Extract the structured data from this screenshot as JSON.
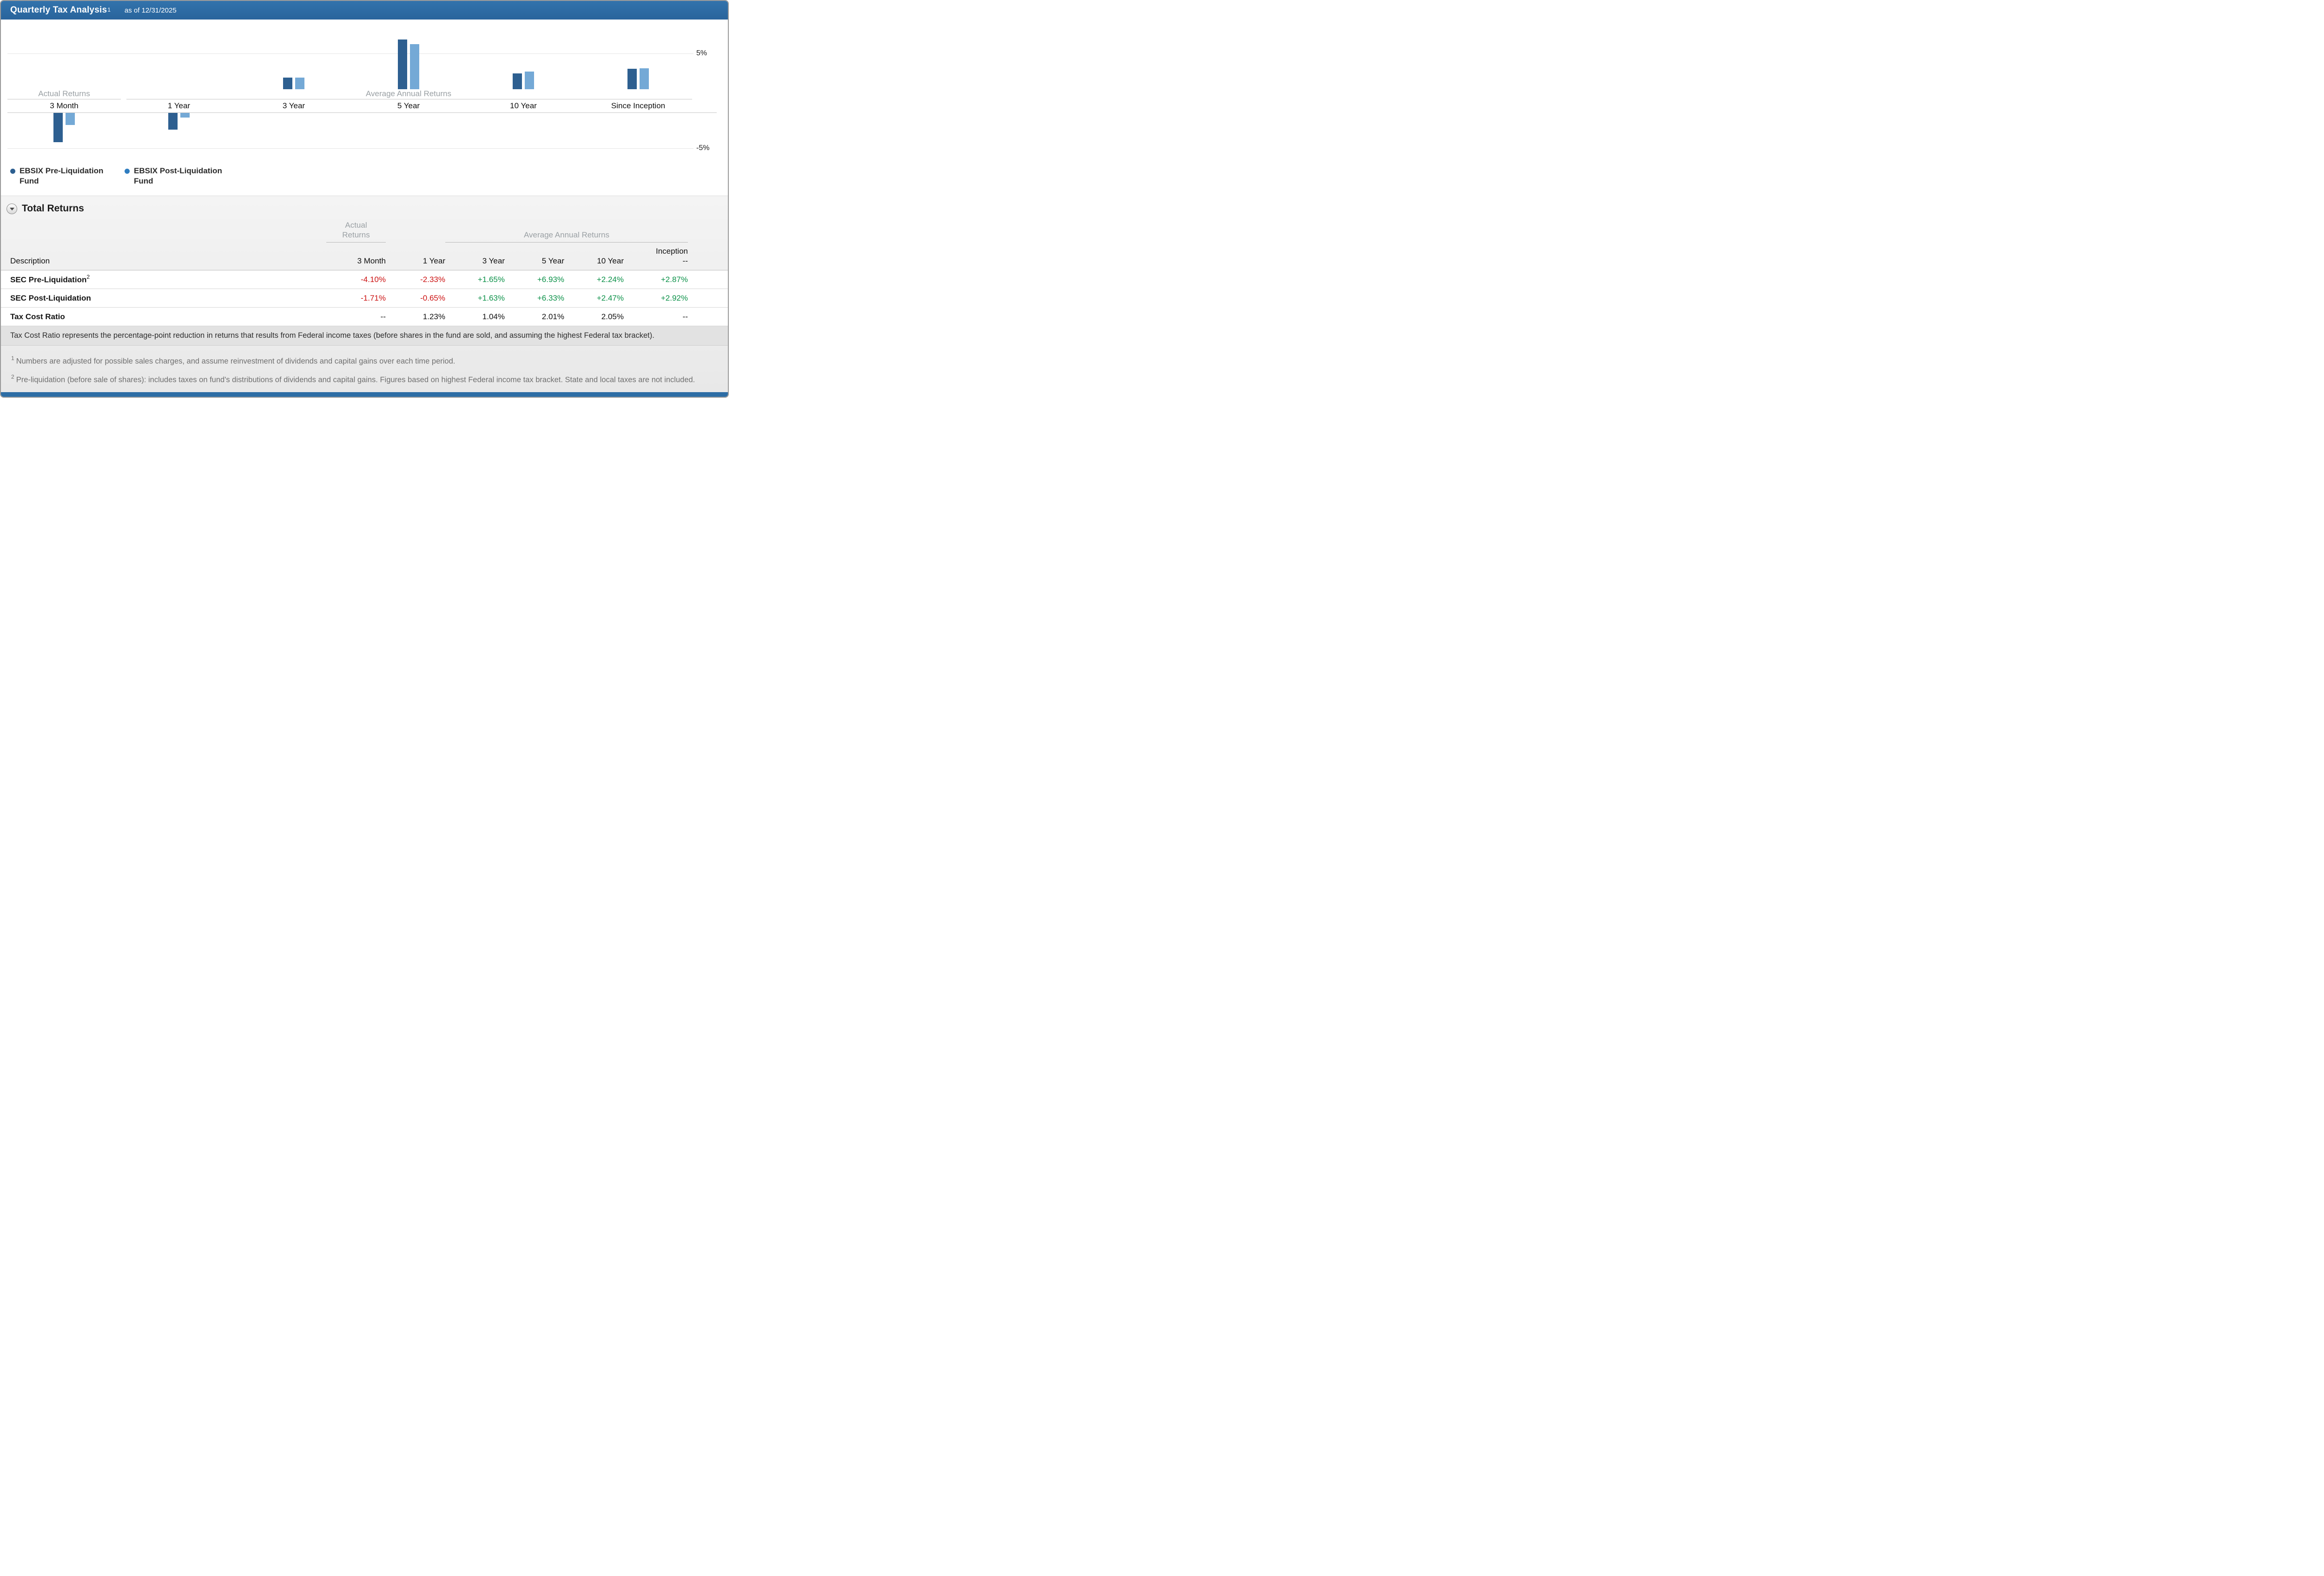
{
  "header": {
    "title": "Quarterly Tax Analysis",
    "title_sup": "1",
    "as_of": "as of 12/31/2025"
  },
  "chart_data": {
    "type": "bar",
    "title": "Quarterly Tax Analysis as of 12/31/2025",
    "categories": [
      "3 Month",
      "1 Year",
      "3 Year",
      "5 Year",
      "10 Year",
      "Since Inception"
    ],
    "groups": [
      {
        "label": "Actual Returns",
        "category_span": [
          0,
          0
        ]
      },
      {
        "label": "Average Annual Returns",
        "category_span": [
          1,
          5
        ]
      }
    ],
    "series": [
      {
        "name": "EBSIX Pre-Liquidation Fund",
        "color": "#2d5f90",
        "values": [
          -4.1,
          -2.33,
          1.65,
          6.93,
          2.24,
          2.87
        ]
      },
      {
        "name": "EBSIX Post-Liquidation Fund",
        "color": "#74a9d6",
        "values": [
          -1.71,
          -0.65,
          1.63,
          6.33,
          2.47,
          2.92
        ]
      }
    ],
    "unit": "%",
    "ylim": [
      -5.5,
      7.5
    ],
    "y_ticks": [
      {
        "label": "5%",
        "value": 5
      },
      {
        "label": "-5%",
        "value": -5
      }
    ],
    "grid": "faint horizontal at +/-5%",
    "legend_position": "bottom-left"
  },
  "legend": {
    "items": [
      {
        "label": "EBSIX Pre-Liquidation Fund",
        "color": "#2d5f90"
      },
      {
        "label": "EBSIX Post-Liquidation Fund",
        "color": "#2f7dc0"
      }
    ]
  },
  "total_returns": {
    "section_title": "Total Returns",
    "group_headers": {
      "actual": "Actual Returns",
      "average": "Average Annual Returns"
    },
    "columns": {
      "description": "Description",
      "c1": "3 Month",
      "c2": "1 Year",
      "c3": "3 Year",
      "c4": "5 Year",
      "c5": "10 Year",
      "c6": "Inception",
      "c6_sub": "--"
    },
    "rows": [
      {
        "label": "SEC Pre-Liquidation",
        "sup": "2",
        "values": [
          "-4.10%",
          "-2.33%",
          "+1.65%",
          "+6.93%",
          "+2.24%",
          "+2.87%"
        ]
      },
      {
        "label": "SEC Post-Liquidation",
        "sup": "",
        "values": [
          "-1.71%",
          "-0.65%",
          "+1.63%",
          "+6.33%",
          "+2.47%",
          "+2.92%"
        ]
      },
      {
        "label": "Tax Cost Ratio",
        "sup": "",
        "values": [
          "--",
          "1.23%",
          "1.04%",
          "2.01%",
          "2.05%",
          "--"
        ]
      }
    ],
    "note": "Tax Cost Ratio represents the percentage-point reduction in returns that results from Federal income taxes (before shares in the fund are sold, and assuming the highest Federal tax bracket)."
  },
  "footnotes": [
    {
      "sup": "1",
      "text": "Numbers are adjusted for possible sales charges, and assume reinvestment of dividends and capital gains over each time period."
    },
    {
      "sup": "2",
      "text": "Pre-liquidation (before sale of shares): includes taxes on fund's distributions of dividends and capital gains. Figures based on highest Federal income tax bracket. State and local taxes are not included."
    }
  ],
  "colors": {
    "header_bar": "#2d6da5",
    "positive_value": "#0b9148",
    "negative_value": "#cc1212",
    "pre_series": "#2d5f90",
    "post_series": "#74a9d6"
  }
}
